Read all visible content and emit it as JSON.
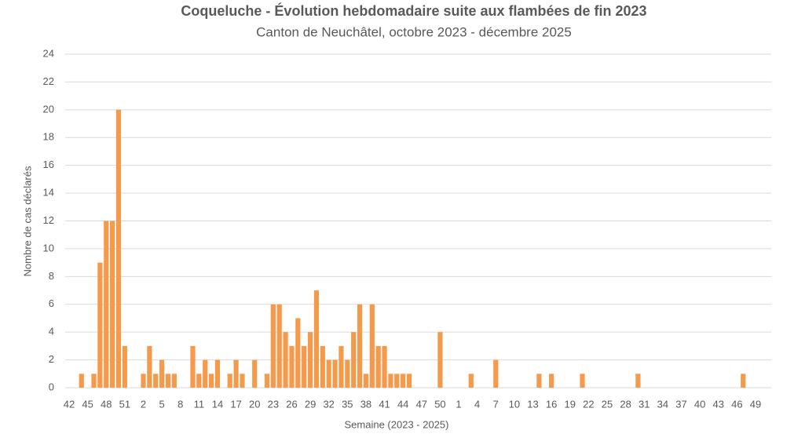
{
  "chart_data": {
    "type": "bar",
    "title": "Coqueluche - Évolution hebdomadaire suite aux flambées de fin 2023",
    "subtitle": "Canton de Neuchâtel, octobre 2023 - décembre 2025",
    "x_label": "Semaine (2023 - 2025)",
    "y_label": "Nombre de cas déclarés",
    "categories": [
      "42",
      null,
      null,
      "45",
      null,
      null,
      "48",
      null,
      null,
      "51",
      null,
      null,
      "2",
      null,
      null,
      "5",
      null,
      null,
      "8",
      null,
      null,
      "11",
      null,
      null,
      "14",
      null,
      null,
      "17",
      null,
      null,
      "20",
      null,
      null,
      "23",
      null,
      null,
      "26",
      null,
      null,
      "29",
      null,
      null,
      "32",
      null,
      null,
      "35",
      null,
      null,
      "38",
      null,
      null,
      "41",
      null,
      null,
      "44",
      null,
      null,
      "47",
      null,
      null,
      "50",
      null,
      null,
      "1",
      null,
      null,
      "4",
      null,
      null,
      "7",
      null,
      null,
      "10",
      null,
      null,
      "13",
      null,
      null,
      "16",
      null,
      null,
      "19",
      null,
      null,
      "22",
      null,
      null,
      "25",
      null,
      null,
      "28",
      null,
      null,
      "31",
      null,
      null,
      "34",
      null,
      null,
      "37",
      null,
      null,
      "40",
      null,
      null,
      "43",
      null,
      null,
      "46",
      null,
      null,
      "49"
    ],
    "values": [
      0,
      0,
      1,
      0,
      1,
      9,
      12,
      12,
      20,
      3,
      0,
      0,
      1,
      3,
      1,
      2,
      1,
      1,
      0,
      0,
      3,
      1,
      2,
      1,
      2,
      0,
      1,
      2,
      1,
      0,
      2,
      0,
      1,
      6,
      6,
      4,
      3,
      5,
      3,
      4,
      7,
      3,
      2,
      2,
      3,
      2,
      4,
      6,
      1,
      6,
      3,
      3,
      1,
      1,
      1,
      1,
      0,
      0,
      0,
      0,
      4,
      0,
      0,
      0,
      0,
      1,
      0,
      0,
      0,
      2,
      0,
      0,
      0,
      0,
      0,
      0,
      1,
      0,
      1,
      0,
      0,
      0,
      0,
      1,
      0,
      0,
      0,
      0,
      0,
      0,
      0,
      0,
      1,
      0,
      0,
      0,
      0,
      0,
      0,
      0,
      0,
      0,
      0,
      0,
      0,
      0,
      0,
      0,
      0,
      1,
      0,
      0
    ],
    "color": "#f59a4a",
    "ylim": [
      0,
      24
    ],
    "yticks": [
      0,
      2,
      4,
      6,
      8,
      10,
      12,
      14,
      16,
      18,
      20,
      22,
      24
    ],
    "grid": true
  }
}
